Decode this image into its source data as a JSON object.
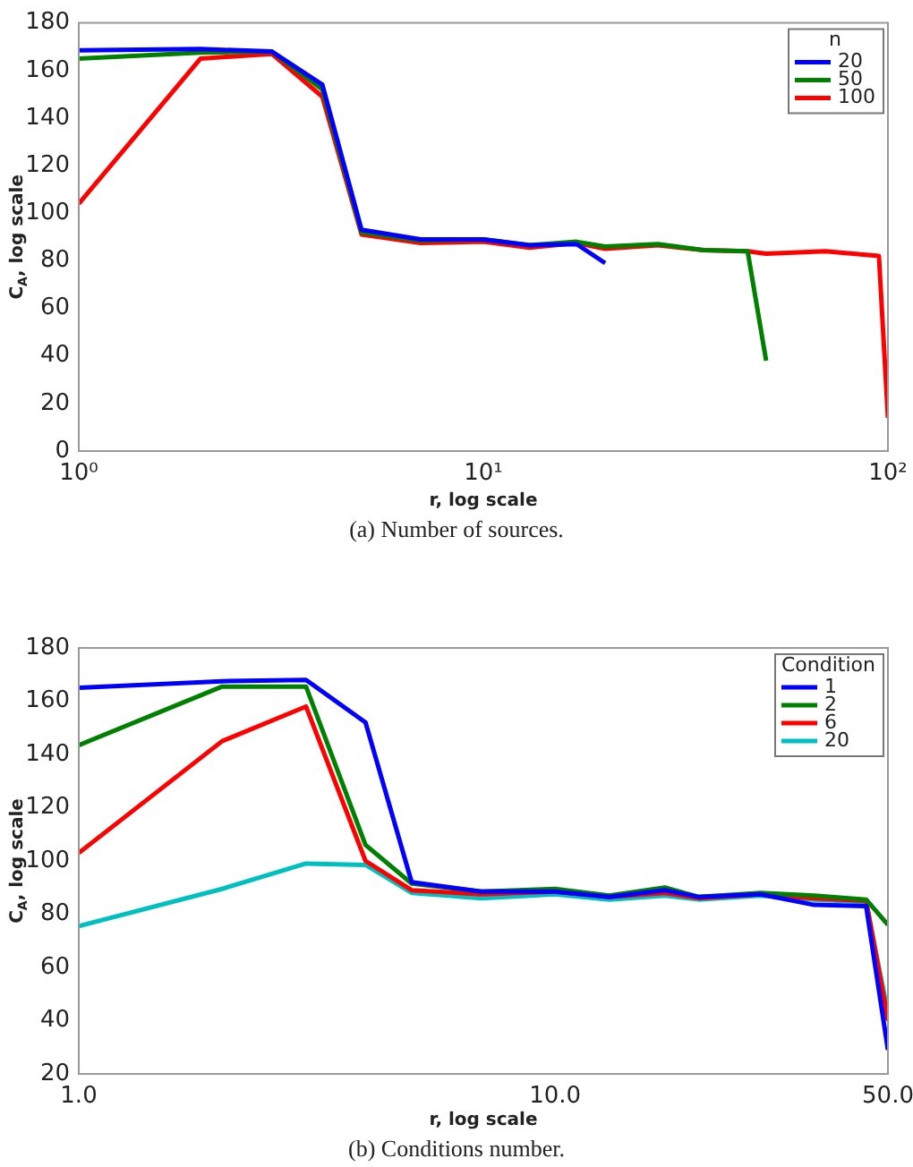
{
  "chart_data": [
    {
      "type": "line",
      "xlabel": "r, log scale",
      "ylabel": "C$_{A}$, log scale",
      "legend_title": "n",
      "log": "x",
      "grid": false,
      "legend": "top right",
      "xlim": [
        1,
        100
      ],
      "ylim": [
        0,
        180
      ],
      "xticks": [
        {
          "value": 1,
          "label": "10⁰"
        },
        {
          "value": 10,
          "label": "10¹"
        },
        {
          "value": 100,
          "label": "10²"
        }
      ],
      "yticks": [
        0,
        20,
        40,
        60,
        80,
        100,
        120,
        140,
        160,
        180
      ],
      "series": [
        {
          "name": "20",
          "color": "#0000ff",
          "x": [
            1,
            2,
            3,
            4,
            5,
            7,
            10,
            13,
            17,
            20
          ],
          "values": [
            168.5,
            169,
            168,
            154,
            93,
            89,
            89,
            86.5,
            87,
            79
          ]
        },
        {
          "name": "50",
          "color": "#008000",
          "x": [
            1,
            2,
            3,
            4,
            5,
            7,
            10,
            13,
            17,
            20,
            27,
            35,
            45,
            50
          ],
          "values": [
            165,
            167.5,
            168,
            152,
            92,
            88.5,
            89,
            86.5,
            88,
            86,
            87,
            84.5,
            84,
            38
          ]
        },
        {
          "name": "100",
          "color": "#ff0000",
          "x": [
            1,
            2,
            3,
            4,
            5,
            7,
            10,
            13,
            17,
            20,
            27,
            35,
            45,
            50,
            70,
            95,
            100
          ],
          "values": [
            104,
            165,
            167,
            149,
            91,
            87.5,
            88,
            85.5,
            87.5,
            85,
            86.5,
            84.5,
            84,
            83,
            84,
            82,
            14
          ]
        }
      ],
      "annotations": [
        "(a) Number of sources."
      ]
    },
    {
      "type": "line",
      "xlabel": "r, log scale",
      "ylabel": "C$_{A}$, log scale",
      "legend_title": "Condition",
      "log": "x",
      "grid": false,
      "legend": "top right",
      "xlim": [
        1,
        50
      ],
      "ylim": [
        20,
        180
      ],
      "xticks": [
        {
          "value": 1,
          "label": "1.0"
        },
        {
          "value": 10,
          "label": "10.0"
        },
        {
          "value": 50,
          "label": "50.0"
        }
      ],
      "yticks": [
        20,
        40,
        60,
        80,
        100,
        120,
        140,
        160,
        180
      ],
      "series": [
        {
          "name": "1",
          "color": "#0000ff",
          "x": [
            1,
            2,
            3,
            4,
            5,
            7,
            10,
            13,
            17,
            20,
            27,
            35,
            45,
            50
          ],
          "values": [
            165,
            167.5,
            168,
            152,
            92,
            88.5,
            88.5,
            86.5,
            89,
            86.5,
            87.5,
            83.5,
            83,
            29
          ]
        },
        {
          "name": "2",
          "color": "#008000",
          "x": [
            1,
            2,
            3,
            4,
            5,
            7,
            10,
            13,
            17,
            20,
            27,
            35,
            45,
            50
          ],
          "values": [
            143.5,
            165.5,
            165.5,
            106,
            91.5,
            88.5,
            89.5,
            87,
            90,
            86.5,
            88,
            87,
            85.5,
            76
          ]
        },
        {
          "name": "6",
          "color": "#ff0000",
          "x": [
            1,
            2,
            3,
            4,
            5,
            7,
            10,
            13,
            17,
            20,
            27,
            35,
            45,
            50
          ],
          "values": [
            103,
            145,
            158,
            100,
            89,
            87.5,
            88.5,
            86.5,
            88,
            86,
            87.5,
            86,
            85,
            40
          ]
        },
        {
          "name": "20",
          "color": "#00bfbf",
          "x": [
            1,
            2,
            3,
            4,
            5,
            7,
            10,
            13,
            17,
            20,
            27,
            35,
            45,
            50
          ],
          "values": [
            75.5,
            89.5,
            99,
            98.5,
            88,
            86,
            87.5,
            85.5,
            87,
            85.5,
            87,
            85.5,
            84.5,
            43
          ]
        }
      ],
      "annotations": [
        "(b) Conditions number."
      ]
    }
  ]
}
